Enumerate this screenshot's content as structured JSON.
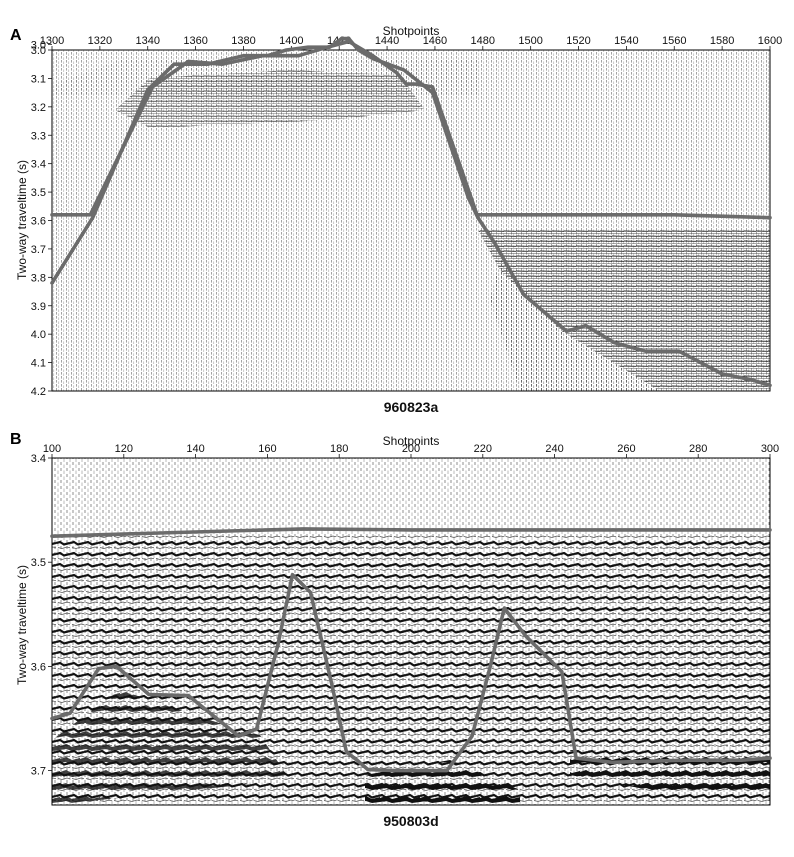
{
  "figure": {
    "colors": {
      "interpretation": "#6b6b6b",
      "ink": "#111111",
      "frame": "#000000"
    }
  },
  "chart_data": [
    {
      "panel": "A",
      "type": "line",
      "caption": "960823a",
      "xlabel": "Shotpoints",
      "ylabel": "Two-way traveltime (s)",
      "xlim": [
        1300,
        1600
      ],
      "ylim": [
        3.0,
        4.2
      ],
      "y_inverted": true,
      "xticks": [
        1300,
        1320,
        1340,
        1360,
        1380,
        1400,
        1420,
        1440,
        1460,
        1480,
        1500,
        1520,
        1540,
        1560,
        1580,
        1600
      ],
      "yticks": [
        "3.0",
        "3.0",
        "3.1",
        "3.2",
        "3.3",
        "3.4",
        "3.5",
        "3.6",
        "3.7",
        "3.8",
        "3.9",
        "4.0",
        "4.1",
        "4.2"
      ],
      "ytick_values": [
        2.98,
        3.0,
        3.1,
        3.2,
        3.3,
        3.4,
        3.5,
        3.6,
        3.7,
        3.8,
        3.9,
        4.0,
        4.1,
        4.2
      ],
      "series": [
        {
          "x": [
            1300,
            1317,
            1340,
            1351,
            1365,
            1380,
            1390,
            1398,
            1407,
            1416,
            1421,
            1424,
            1428,
            1434,
            1447,
            1459,
            1474,
            1478,
            1485,
            1497,
            1515,
            1523,
            1535,
            1548,
            1562,
            1580,
            1592,
            1600
          ],
          "y": [
            3.82,
            3.59,
            3.14,
            3.05,
            3.05,
            3.02,
            3.02,
            3.0,
            2.99,
            2.99,
            2.96,
            2.96,
            3.0,
            3.03,
            3.07,
            3.15,
            3.52,
            3.59,
            3.68,
            3.86,
            3.99,
            3.97,
            4.03,
            4.06,
            4.06,
            4.14,
            4.16,
            4.18
          ]
        },
        {
          "x": [
            1300,
            1316,
            1342,
            1357,
            1371,
            1388,
            1403,
            1415,
            1424,
            1434,
            1444,
            1448,
            1452,
            1459,
            1471,
            1478
          ],
          "y": [
            3.58,
            3.58,
            3.13,
            3.04,
            3.05,
            3.02,
            3.02,
            2.99,
            2.97,
            3.02,
            3.08,
            3.12,
            3.12,
            3.13,
            3.42,
            3.59
          ]
        },
        {
          "x": [
            1478,
            1520,
            1560,
            1600
          ],
          "y": [
            3.58,
            3.58,
            3.58,
            3.59
          ]
        }
      ]
    },
    {
      "panel": "B",
      "type": "line",
      "caption": "950803d",
      "xlabel": "Shotpoints",
      "ylabel": "Two-way traveltime (s)",
      "xlim": [
        100,
        300
      ],
      "ylim": [
        3.4,
        3.733
      ],
      "y_inverted": true,
      "xticks": [
        100,
        120,
        140,
        160,
        180,
        200,
        220,
        240,
        260,
        280,
        300
      ],
      "yticks": [
        "3.4",
        "3.5",
        "3.6",
        "3.7"
      ],
      "ytick_values": [
        3.4,
        3.5,
        3.6,
        3.7
      ],
      "series": [
        {
          "x": [
            100,
            105,
            113,
            118,
            127,
            138,
            152,
            157,
            163,
            167,
            172,
            178,
            182,
            185,
            188,
            196,
            210,
            217,
            222,
            226,
            232,
            237,
            242,
            246,
            256,
            276,
            281,
            292,
            300
          ],
          "y": [
            3.65,
            3.645,
            3.602,
            3.6,
            3.627,
            3.628,
            3.667,
            3.66,
            3.578,
            3.512,
            3.529,
            3.618,
            3.682,
            3.69,
            3.699,
            3.7,
            3.7,
            3.667,
            3.601,
            3.544,
            3.571,
            3.588,
            3.605,
            3.688,
            3.692,
            3.69,
            3.69,
            3.69,
            3.688
          ]
        },
        {
          "x": [
            100,
            130,
            160,
            170,
            200,
            250,
            300
          ],
          "y": [
            3.475,
            3.472,
            3.469,
            3.468,
            3.469,
            3.469,
            3.469
          ]
        }
      ]
    }
  ]
}
